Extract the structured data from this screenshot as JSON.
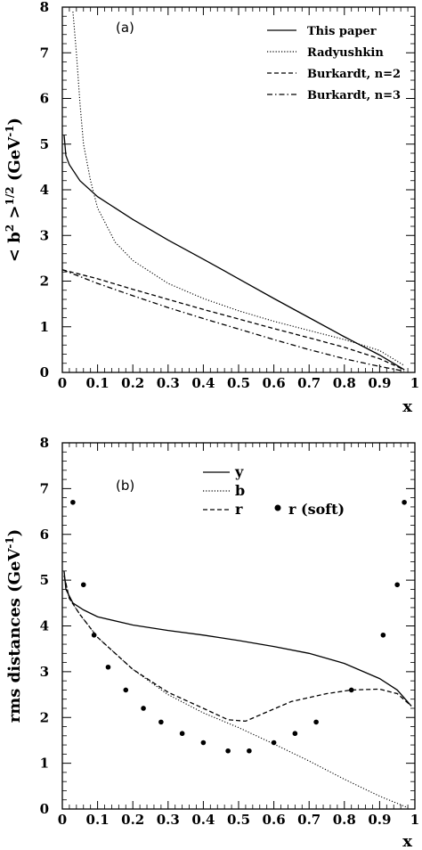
{
  "chart_data": [
    {
      "type": "line",
      "panel_tag": "(a)",
      "xlabel": "x",
      "ylabel": "< b² >¹ᐟ² (GeV⁻¹)",
      "ylabel_parts": {
        "open": "< b",
        "sup1": "2",
        "mid": " >",
        "sup2": "1/2",
        "unit": " (GeV",
        "sup3": "-1",
        "close": ")"
      },
      "xlim": [
        0,
        1
      ],
      "ylim": [
        0,
        8
      ],
      "xticks": [
        "0",
        "0.1",
        "0.2",
        "0.3",
        "0.4",
        "0.5",
        "0.6",
        "0.7",
        "0.8",
        "0.9",
        "1"
      ],
      "yticks": [
        "0",
        "1",
        "2",
        "3",
        "4",
        "5",
        "6",
        "7",
        "8"
      ],
      "grid": false,
      "legend_position": "top-right",
      "series": [
        {
          "name": "This paper",
          "style": "solid",
          "points": [
            [
              0.005,
              5.2
            ],
            [
              0.01,
              4.75
            ],
            [
              0.02,
              4.55
            ],
            [
              0.05,
              4.2
            ],
            [
              0.1,
              3.85
            ],
            [
              0.2,
              3.35
            ],
            [
              0.3,
              2.9
            ],
            [
              0.4,
              2.48
            ],
            [
              0.5,
              2.05
            ],
            [
              0.6,
              1.62
            ],
            [
              0.7,
              1.2
            ],
            [
              0.8,
              0.78
            ],
            [
              0.9,
              0.38
            ],
            [
              0.97,
              0.06
            ]
          ]
        },
        {
          "name": "Radyushkin",
          "style": "dotted",
          "points": [
            [
              0.03,
              7.9
            ],
            [
              0.04,
              7.0
            ],
            [
              0.05,
              5.9
            ],
            [
              0.06,
              5.0
            ],
            [
              0.08,
              4.2
            ],
            [
              0.1,
              3.6
            ],
            [
              0.15,
              2.85
            ],
            [
              0.2,
              2.45
            ],
            [
              0.3,
              1.95
            ],
            [
              0.4,
              1.62
            ],
            [
              0.5,
              1.35
            ],
            [
              0.6,
              1.12
            ],
            [
              0.7,
              0.92
            ],
            [
              0.8,
              0.72
            ],
            [
              0.9,
              0.48
            ],
            [
              0.97,
              0.15
            ]
          ]
        },
        {
          "name": "Burkardt, n=2",
          "style": "dashed",
          "points": [
            [
              0,
              2.25
            ],
            [
              0.1,
              2.05
            ],
            [
              0.2,
              1.82
            ],
            [
              0.3,
              1.6
            ],
            [
              0.4,
              1.38
            ],
            [
              0.5,
              1.17
            ],
            [
              0.6,
              0.96
            ],
            [
              0.7,
              0.76
            ],
            [
              0.8,
              0.55
            ],
            [
              0.9,
              0.3
            ],
            [
              0.97,
              0.06
            ]
          ]
        },
        {
          "name": "Burkardt, n=3",
          "style": "dashdot",
          "points": [
            [
              0,
              2.25
            ],
            [
              0.1,
              1.95
            ],
            [
              0.2,
              1.68
            ],
            [
              0.3,
              1.42
            ],
            [
              0.4,
              1.18
            ],
            [
              0.5,
              0.95
            ],
            [
              0.6,
              0.72
            ],
            [
              0.7,
              0.5
            ],
            [
              0.8,
              0.3
            ],
            [
              0.9,
              0.13
            ],
            [
              0.97,
              0.03
            ]
          ]
        }
      ]
    },
    {
      "type": "line",
      "panel_tag": "(b)",
      "xlabel": "x",
      "ylabel": "rms distances (GeV⁻¹)",
      "ylabel_parts": {
        "main": "rms distances (GeV",
        "sup": "-1",
        "close": ")"
      },
      "xlim": [
        0,
        1
      ],
      "ylim": [
        0,
        8
      ],
      "xticks": [
        "0",
        "0.1",
        "0.2",
        "0.3",
        "0.4",
        "0.5",
        "0.6",
        "0.7",
        "0.8",
        "0.9",
        "1"
      ],
      "yticks": [
        "0",
        "1",
        "2",
        "3",
        "4",
        "5",
        "6",
        "7",
        "8"
      ],
      "grid": false,
      "legend_position": "top-center",
      "series": [
        {
          "name": "y",
          "style": "solid",
          "points": [
            [
              0.005,
              5.2
            ],
            [
              0.01,
              4.8
            ],
            [
              0.03,
              4.5
            ],
            [
              0.06,
              4.35
            ],
            [
              0.1,
              4.2
            ],
            [
              0.2,
              4.02
            ],
            [
              0.3,
              3.9
            ],
            [
              0.4,
              3.8
            ],
            [
              0.5,
              3.68
            ],
            [
              0.6,
              3.55
            ],
            [
              0.7,
              3.4
            ],
            [
              0.8,
              3.18
            ],
            [
              0.9,
              2.85
            ],
            [
              0.95,
              2.6
            ],
            [
              0.99,
              2.25
            ]
          ]
        },
        {
          "name": "b",
          "style": "dotted",
          "points": [
            [
              0.005,
              5.1
            ],
            [
              0.02,
              4.6
            ],
            [
              0.05,
              4.25
            ],
            [
              0.1,
              3.75
            ],
            [
              0.2,
              3.05
            ],
            [
              0.3,
              2.5
            ],
            [
              0.4,
              2.1
            ],
            [
              0.5,
              1.78
            ],
            [
              0.6,
              1.42
            ],
            [
              0.7,
              1.05
            ],
            [
              0.8,
              0.65
            ],
            [
              0.9,
              0.28
            ],
            [
              0.98,
              0.03
            ]
          ]
        },
        {
          "name": "r",
          "style": "dashed",
          "points": [
            [
              0.005,
              5.1
            ],
            [
              0.02,
              4.6
            ],
            [
              0.05,
              4.25
            ],
            [
              0.1,
              3.75
            ],
            [
              0.2,
              3.05
            ],
            [
              0.3,
              2.55
            ],
            [
              0.4,
              2.2
            ],
            [
              0.47,
              1.95
            ],
            [
              0.52,
              1.92
            ],
            [
              0.58,
              2.12
            ],
            [
              0.65,
              2.35
            ],
            [
              0.75,
              2.52
            ],
            [
              0.82,
              2.6
            ],
            [
              0.9,
              2.62
            ],
            [
              0.95,
              2.52
            ],
            [
              0.99,
              2.25
            ]
          ]
        },
        {
          "name": "r (soft)",
          "style": "markers",
          "points": [
            [
              0.03,
              6.7
            ],
            [
              0.06,
              4.9
            ],
            [
              0.09,
              3.8
            ],
            [
              0.13,
              3.1
            ],
            [
              0.18,
              2.6
            ],
            [
              0.23,
              2.2
            ],
            [
              0.28,
              1.9
            ],
            [
              0.34,
              1.65
            ],
            [
              0.4,
              1.45
            ],
            [
              0.47,
              1.27
            ],
            [
              0.53,
              1.27
            ],
            [
              0.6,
              1.45
            ],
            [
              0.66,
              1.65
            ],
            [
              0.72,
              1.9
            ],
            [
              0.82,
              2.6
            ],
            [
              0.91,
              3.8
            ],
            [
              0.95,
              4.9
            ],
            [
              0.97,
              6.7
            ]
          ]
        }
      ]
    }
  ]
}
